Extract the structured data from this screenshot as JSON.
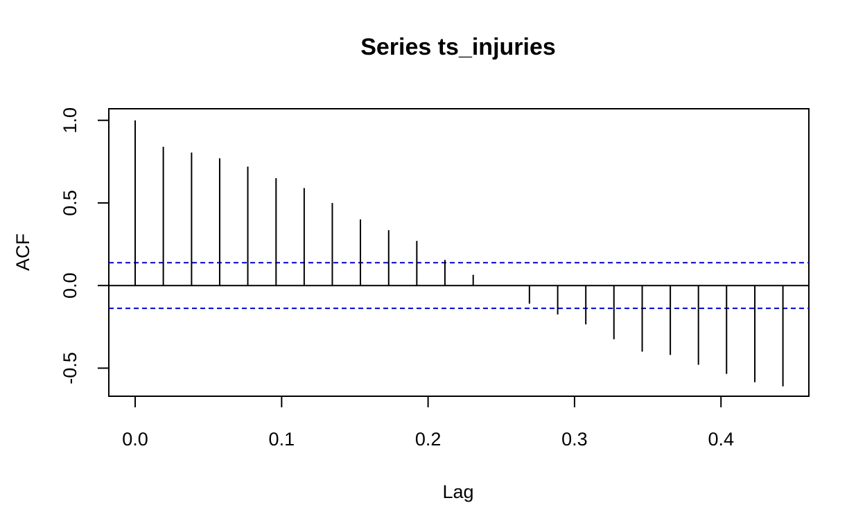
{
  "chart_data": {
    "type": "bar",
    "title": "Series  ts_injuries",
    "xlabel": "Lag",
    "ylabel": "ACF",
    "xlim": [
      -0.018,
      0.46
    ],
    "ylim": [
      -0.67,
      1.07
    ],
    "x_ticks": [
      {
        "value": 0.0,
        "label": "0.0"
      },
      {
        "value": 0.1,
        "label": "0.1"
      },
      {
        "value": 0.2,
        "label": "0.2"
      },
      {
        "value": 0.3,
        "label": "0.3"
      },
      {
        "value": 0.4,
        "label": "0.4"
      }
    ],
    "y_ticks": [
      {
        "value": -0.5,
        "label": "-0.5"
      },
      {
        "value": 0.0,
        "label": "0.0"
      },
      {
        "value": 0.5,
        "label": "0.5"
      },
      {
        "value": 1.0,
        "label": "1.0"
      }
    ],
    "confidence_bound": 0.138,
    "line_color": "#000000",
    "bound_color": "#0000cd",
    "series": [
      {
        "lag": [
          0.0,
          0.0192,
          0.0385,
          0.0577,
          0.0769,
          0.0962,
          0.1154,
          0.1346,
          0.1538,
          0.1731,
          0.1923,
          0.2115,
          0.2308,
          0.25,
          0.2692,
          0.2885,
          0.3077,
          0.3269,
          0.3462,
          0.3654,
          0.3846,
          0.4038,
          0.4231,
          0.4423
        ],
        "acf": [
          1.0,
          0.84,
          0.805,
          0.77,
          0.72,
          0.65,
          0.59,
          0.5,
          0.4,
          0.335,
          0.27,
          0.155,
          0.065,
          0.0,
          -0.11,
          -0.175,
          -0.235,
          -0.325,
          -0.4,
          -0.42,
          -0.48,
          -0.535,
          -0.585,
          -0.61
        ]
      }
    ]
  }
}
